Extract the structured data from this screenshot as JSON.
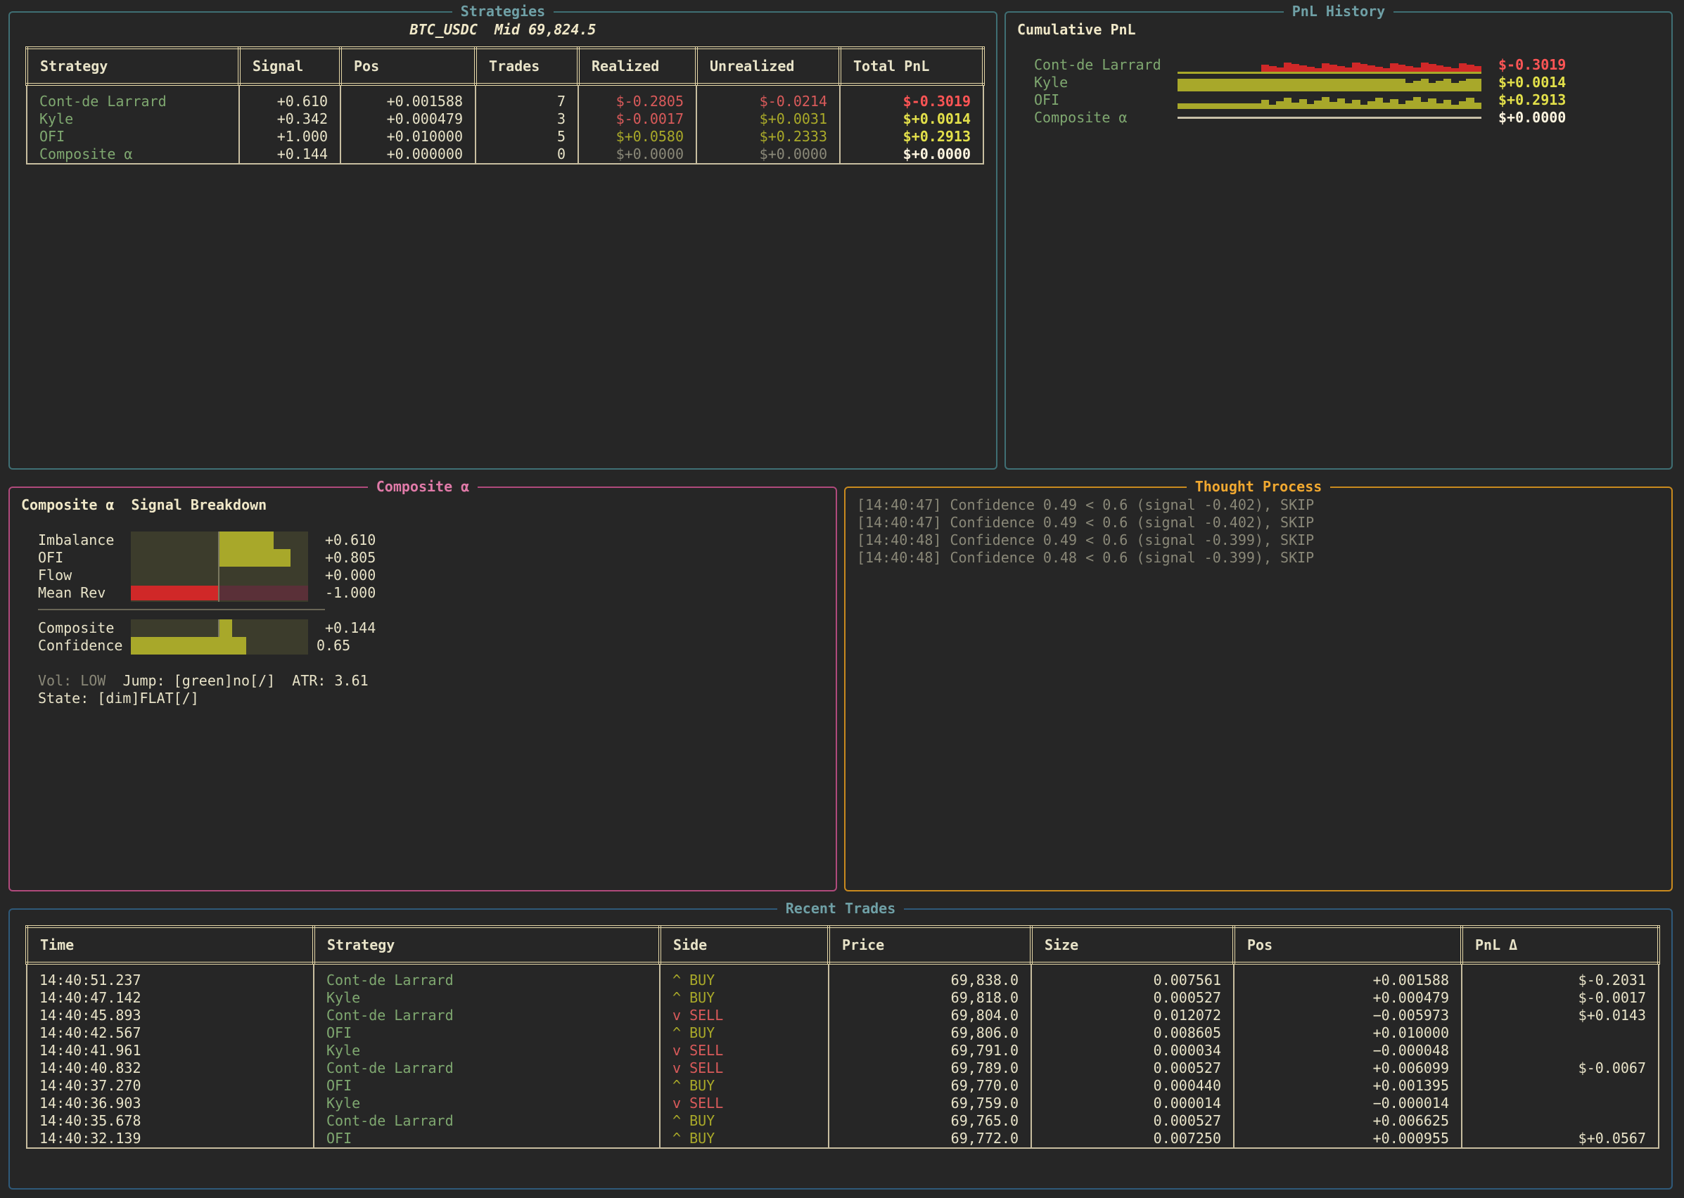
{
  "strategies_panel": {
    "title": "Strategies",
    "header": "BTC_USDC  Mid 69,824.5",
    "columns": [
      "Strategy",
      "Signal",
      "Pos",
      "Trades",
      "Realized",
      "Unrealized",
      "Total PnL"
    ],
    "rows": [
      {
        "name": "Cont-de Larrard",
        "signal": "+0.610",
        "pos": "+0.001588",
        "trades": "7",
        "realized": "$-0.2805",
        "unrealized": "$-0.0214",
        "total": "$-0.3019"
      },
      {
        "name": "Kyle",
        "signal": "+0.342",
        "pos": "+0.000479",
        "trades": "3",
        "realized": "$-0.0017",
        "unrealized": "$+0.0031",
        "total": "$+0.0014"
      },
      {
        "name": "OFI",
        "signal": "+1.000",
        "pos": "+0.010000",
        "trades": "5",
        "realized": "$+0.0580",
        "unrealized": "$+0.2333",
        "total": "$+0.2913"
      },
      {
        "name": "Composite α",
        "signal": "+0.144",
        "pos": "+0.000000",
        "trades": "0",
        "realized": "$+0.0000",
        "unrealized": "$+0.0000",
        "total": "$+0.0000"
      }
    ]
  },
  "pnl_history": {
    "title": "PnL History",
    "heading": "Cumulative PnL",
    "rows": [
      {
        "name": "Cont-de Larrard",
        "value": "$-0.3019"
      },
      {
        "name": "Kyle",
        "value": "$+0.0014"
      },
      {
        "name": "OFI",
        "value": "$+0.2913"
      },
      {
        "name": "Composite α",
        "value": "$+0.0000"
      }
    ]
  },
  "composite": {
    "title": "Composite α",
    "heading": "Composite α  Signal Breakdown",
    "signals": [
      {
        "label": "Imbalance",
        "value": "+0.610",
        "level": 0.61
      },
      {
        "label": "OFI",
        "value": "+0.805",
        "level": 0.805
      },
      {
        "label": "Flow",
        "value": "+0.000",
        "level": 0.0
      },
      {
        "label": "Mean Rev",
        "value": "-1.000",
        "level": -1.0
      }
    ],
    "composite_label": "Composite",
    "composite_value": "+0.144",
    "composite_level": 0.144,
    "confidence_label": "Confidence",
    "confidence_value": "0.65",
    "confidence_level": 0.65,
    "vol_label": "Vol:",
    "vol_value": "LOW",
    "jump_text": "Jump: [green]no[/]",
    "atr_text": "ATR: 3.61",
    "state_text": "State: [dim]FLAT[/]"
  },
  "thought_process": {
    "title": "Thought Process",
    "lines": [
      "[14:40:47] Confidence 0.49 < 0.6 (signal -0.402), SKIP",
      "[14:40:47] Confidence 0.49 < 0.6 (signal -0.402), SKIP",
      "[14:40:48] Confidence 0.49 < 0.6 (signal -0.399), SKIP",
      "[14:40:48] Confidence 0.48 < 0.6 (signal -0.399), SKIP"
    ]
  },
  "recent_trades": {
    "title": "Recent Trades",
    "columns": [
      "Time",
      "Strategy",
      "Side",
      "Price",
      "Size",
      "Pos",
      "PnL Δ"
    ],
    "rows": [
      {
        "time": "14:40:51.237",
        "strategy": "Cont-de Larrard",
        "side": "^ BUY",
        "price": "69,838.0",
        "size": "0.007561",
        "pos": "+0.001588",
        "pnl": "$-0.2031"
      },
      {
        "time": "14:40:47.142",
        "strategy": "Kyle",
        "side": "^ BUY",
        "price": "69,818.0",
        "size": "0.000527",
        "pos": "+0.000479",
        "pnl": "$-0.0017"
      },
      {
        "time": "14:40:45.893",
        "strategy": "Cont-de Larrard",
        "side": "v SELL",
        "price": "69,804.0",
        "size": "0.012072",
        "pos": "−0.005973",
        "pnl": "$+0.0143"
      },
      {
        "time": "14:40:42.567",
        "strategy": "OFI",
        "side": "^ BUY",
        "price": "69,806.0",
        "size": "0.008605",
        "pos": "+0.010000",
        "pnl": ""
      },
      {
        "time": "14:40:41.961",
        "strategy": "Kyle",
        "side": "v SELL",
        "price": "69,791.0",
        "size": "0.000034",
        "pos": "−0.000048",
        "pnl": ""
      },
      {
        "time": "14:40:40.832",
        "strategy": "Cont-de Larrard",
        "side": "v SELL",
        "price": "69,789.0",
        "size": "0.000527",
        "pos": "+0.006099",
        "pnl": "$-0.0067"
      },
      {
        "time": "14:40:37.270",
        "strategy": "OFI",
        "side": "^ BUY",
        "price": "69,770.0",
        "size": "0.000440",
        "pos": "+0.001395",
        "pnl": ""
      },
      {
        "time": "14:40:36.903",
        "strategy": "Kyle",
        "side": "v SELL",
        "price": "69,759.0",
        "size": "0.000014",
        "pos": "−0.000014",
        "pnl": ""
      },
      {
        "time": "14:40:35.678",
        "strategy": "Cont-de Larrard",
        "side": "^ BUY",
        "price": "69,765.0",
        "size": "0.000527",
        "pos": "+0.006625",
        "pnl": ""
      },
      {
        "time": "14:40:32.139",
        "strategy": "OFI",
        "side": "^ BUY",
        "price": "69,772.0",
        "size": "0.007250",
        "pos": "+0.000955",
        "pnl": "$+0.0567"
      }
    ]
  },
  "colors": {
    "strategies_border": "#3f6f74",
    "pnl_border": "#3f6f74",
    "composite_border": "#b04a7c",
    "thought_border": "#c98a1e",
    "trades_border": "#2f5a7a",
    "buy": "#a9a929",
    "sell": "#d95a5a"
  }
}
